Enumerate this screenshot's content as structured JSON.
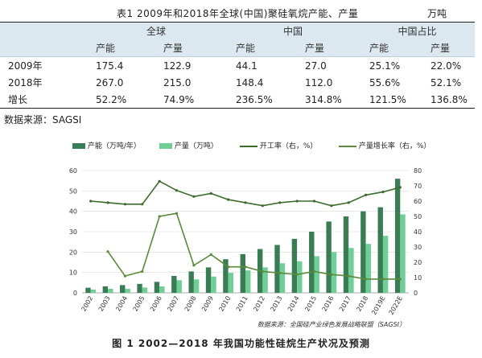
{
  "table": {
    "title": "表1  2009年和2018年全球(中国)聚硅氧烷产能、产量",
    "unit": "万吨",
    "groups": [
      "全球",
      "中国",
      "中国占比"
    ],
    "subheaders": [
      "产能",
      "产量",
      "产能",
      "产量",
      "产能",
      "产量"
    ],
    "rows": [
      {
        "label": "2009年",
        "cells": [
          "175.4",
          "122.9",
          "44.1",
          "27.0",
          "25.1%",
          "22.0%"
        ]
      },
      {
        "label": "2018年",
        "cells": [
          "267.0",
          "215.0",
          "148.4",
          "112.0",
          "55.6%",
          "52.1%"
        ]
      },
      {
        "label": "增长",
        "cells": [
          "52.2%",
          "74.9%",
          "236.5%",
          "314.8%",
          "121.5%",
          "136.8%"
        ]
      }
    ],
    "source": "数据来源：SAGSI"
  },
  "figure_caption": "图 1  2002—2018 年我国功能性硅烷生产状况及预测",
  "chart_data": {
    "type": "bar",
    "categories": [
      "2002",
      "2003",
      "2004",
      "2005",
      "2006",
      "2007",
      "2008",
      "2009",
      "2010",
      "2011",
      "2012",
      "2013",
      "2014",
      "2015",
      "2016",
      "2017",
      "2018",
      "2019E",
      "2022E"
    ],
    "series": [
      {
        "name": "产能（万吨/年）",
        "kind": "bar",
        "axis": "left",
        "color": "#3a7d55",
        "values": [
          2.5,
          3.2,
          3.8,
          4.4,
          5.4,
          8.3,
          10.5,
          12.5,
          16.5,
          19.0,
          21.5,
          23.5,
          26.5,
          30.0,
          35.0,
          37.5,
          40.0,
          42.0,
          56.0
        ]
      },
      {
        "name": "产量（万吨）",
        "kind": "bar",
        "axis": "left",
        "color": "#6fcf97",
        "values": [
          1.6,
          2.0,
          2.0,
          2.6,
          3.2,
          6.2,
          6.6,
          8.0,
          9.8,
          11.0,
          12.5,
          14.5,
          15.5,
          18.0,
          20.0,
          22.0,
          24.0,
          28.0,
          38.5
        ]
      },
      {
        "name": "开工率（右，%）",
        "kind": "line",
        "axis": "right",
        "color": "#3d6b2c",
        "values": [
          60,
          59,
          58,
          58,
          73,
          67,
          63,
          65,
          61,
          59,
          57,
          59,
          60,
          60,
          57,
          59,
          64,
          66,
          69
        ]
      },
      {
        "name": "产量增长率（右，%）",
        "kind": "line",
        "axis": "right",
        "color": "#5b8a3c",
        "values": [
          null,
          27,
          11,
          14,
          50,
          52,
          18,
          25,
          17,
          17,
          14,
          13,
          12,
          14,
          12,
          11,
          9,
          9,
          9
        ]
      }
    ],
    "left_ylim": [
      0,
      60
    ],
    "left_ticks": [
      0,
      10,
      20,
      30,
      40,
      50,
      60
    ],
    "right_ylim": [
      0,
      80
    ],
    "right_ticks": [
      0,
      10,
      20,
      30,
      40,
      50,
      60,
      70,
      80
    ],
    "source_note": "数据来源：全国硅产业绿色发展战略联盟（SAGSI）"
  }
}
